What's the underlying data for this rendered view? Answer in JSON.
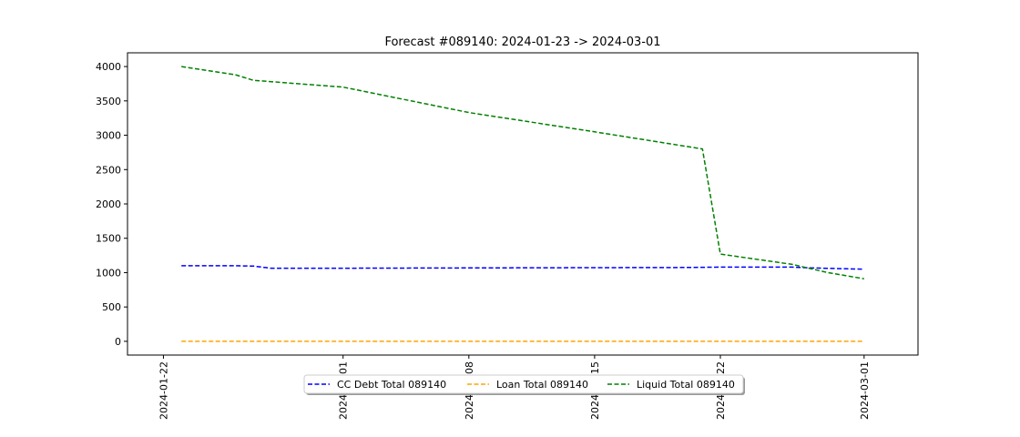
{
  "chart_data": {
    "type": "line",
    "title": "Forecast #089140: 2024-01-23 -> 2024-03-01",
    "xlabel": "",
    "ylabel": "",
    "x_range": [
      "2024-01-20",
      "2024-03-04"
    ],
    "ylim": [
      -200,
      4200
    ],
    "grid": false,
    "legend_placement": "bottom-center",
    "x_ticks": [
      "2024-01-22",
      "2024-02-01",
      "2024-02-08",
      "2024-02-15",
      "2024-02-22",
      "2024-03-01"
    ],
    "y_ticks": [
      0,
      500,
      1000,
      1500,
      2000,
      2500,
      3000,
      3500,
      4000
    ],
    "series": [
      {
        "name": "CC Debt Total 089140",
        "color": "#0000ff",
        "points": [
          [
            "2024-01-23",
            1100
          ],
          [
            "2024-01-26",
            1100
          ],
          [
            "2024-01-27",
            1095
          ],
          [
            "2024-01-28",
            1065
          ],
          [
            "2024-02-01",
            1065
          ],
          [
            "2024-02-10",
            1070
          ],
          [
            "2024-02-20",
            1075
          ],
          [
            "2024-02-22",
            1080
          ],
          [
            "2024-02-26",
            1080
          ],
          [
            "2024-02-27",
            1070
          ],
          [
            "2024-03-01",
            1050
          ]
        ]
      },
      {
        "name": "Loan Total 089140",
        "color": "#ffa500",
        "points": [
          [
            "2024-01-23",
            0
          ],
          [
            "2024-03-01",
            0
          ]
        ]
      },
      {
        "name": "Liquid Total 089140",
        "color": "#008000",
        "points": [
          [
            "2024-01-23",
            4000
          ],
          [
            "2024-01-26",
            3880
          ],
          [
            "2024-01-27",
            3800
          ],
          [
            "2024-01-28",
            3780
          ],
          [
            "2024-02-01",
            3700
          ],
          [
            "2024-02-08",
            3330
          ],
          [
            "2024-02-15",
            3050
          ],
          [
            "2024-02-21",
            2800
          ],
          [
            "2024-02-22",
            1270
          ],
          [
            "2024-02-26",
            1120
          ],
          [
            "2024-02-28",
            1000
          ],
          [
            "2024-03-01",
            910
          ]
        ]
      }
    ]
  }
}
